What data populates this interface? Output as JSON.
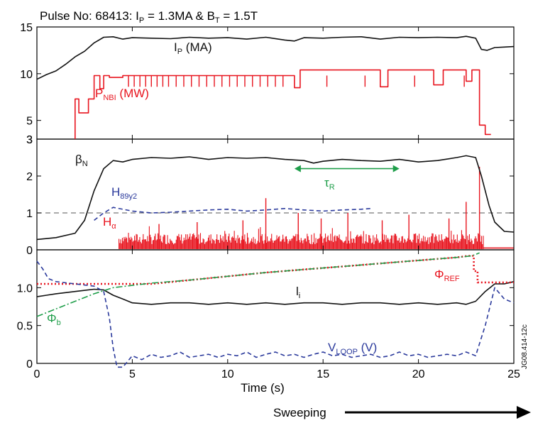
{
  "chart_data": {
    "type": "line",
    "title": "Pulse No: 68413: I",
    "title_parts": {
      "p1": "Pulse No: 68413: I",
      "p_sub": "P",
      "p2": " = 1.3MA & B",
      "t_sub": "T",
      "p3": " = 1.5T"
    },
    "xlabel": "Time (s)",
    "xlim": [
      0,
      25
    ],
    "xticks": [
      "0",
      "5",
      "10",
      "15",
      "20",
      "25"
    ],
    "side_label": "JG08.414-12c",
    "footer": "Sweeping",
    "colors": {
      "black": "#111111",
      "red": "#e8141e",
      "blue": "#2b3a9c",
      "green": "#1f9e4a",
      "gray": "#777777"
    },
    "panels": [
      {
        "ylim": [
          3,
          15
        ],
        "yticks": [
          "3",
          "5",
          "10",
          "15"
        ],
        "labels": {
          "ip": {
            "main": "I",
            "sub": "P",
            "tail": " (MA)"
          },
          "pnbi": {
            "main": "P",
            "sub": "NBI",
            "tail": " (MW)"
          }
        },
        "series": [
          {
            "key": "ip",
            "color": "#111111",
            "x": [
              0,
              0.5,
              1,
              1.5,
              2,
              2.5,
              3,
              3.5,
              4,
              4.5,
              5,
              6,
              7,
              8,
              9,
              10,
              11,
              12,
              13,
              13.5,
              14,
              15,
              16,
              17,
              18,
              19,
              20,
              21,
              22,
              22.5,
              23,
              23.3,
              23.6,
              24,
              24.5,
              25
            ],
            "y": [
              9.4,
              9.9,
              10.3,
              11.0,
              11.8,
              12.4,
              13.3,
              13.9,
              13.95,
              13.7,
              13.85,
              13.8,
              13.75,
              13.9,
              13.8,
              13.85,
              13.7,
              13.9,
              13.6,
              13.5,
              13.85,
              13.8,
              13.9,
              13.95,
              13.7,
              13.9,
              13.85,
              13.9,
              13.85,
              14.0,
              13.8,
              12.6,
              12.5,
              12.8,
              12.85,
              12.9
            ]
          },
          {
            "key": "pnbi",
            "color": "#e8141e",
            "x": [
              2,
              2,
              2.2,
              2.2,
              2.7,
              2.7,
              3,
              3,
              3.3,
              3.3,
              3.5,
              3.5,
              3.8,
              3.8,
              4.5,
              4.5,
              13.5,
              13.5,
              13.8,
              13.8,
              18,
              18,
              18.4,
              18.4,
              20.8,
              20.8,
              21.3,
              21.3,
              22.5,
              22.5,
              22.8,
              22.8,
              23.2,
              23.2,
              23.5,
              23.5,
              23.8
            ],
            "y": [
              3,
              7.3,
              7.3,
              5.8,
              5.8,
              7.3,
              7.3,
              9.8,
              9.8,
              8.4,
              8.4,
              9.8,
              9.8,
              9.6,
              9.6,
              9.8,
              9.8,
              8.5,
              8.5,
              10.4,
              10.4,
              8.6,
              8.6,
              10.4,
              10.4,
              8.8,
              8.8,
              10.4,
              10.4,
              9.2,
              9.2,
              10.4,
              10.4,
              4.5,
              4.5,
              3.5,
              3.5
            ]
          }
        ],
        "spikes_x": [
          4.8,
          5.1,
          5.4,
          5.7,
          6.0,
          6.3,
          6.6,
          6.9,
          7.3,
          7.7,
          8.1,
          8.5,
          8.9,
          9.3,
          9.7,
          10.1,
          10.5,
          10.9,
          11.3,
          11.7,
          12.1,
          12.5,
          12.9,
          15.2,
          17.2,
          19.8,
          22.4
        ]
      },
      {
        "ylim": [
          0,
          3
        ],
        "yticks": [
          "0",
          "1",
          "2",
          "3"
        ],
        "reference_line": 1,
        "labels": {
          "betaN": {
            "main": "β",
            "sub": "N"
          },
          "h89": {
            "main": "H",
            "sub": "89y2"
          },
          "halpha": {
            "main": "H",
            "sub": "α"
          },
          "tauR": {
            "main": "τ",
            "sub": "R"
          }
        },
        "tauR_span": [
          13.5,
          19
        ],
        "tauR_y": 2.2,
        "series": [
          {
            "key": "betaN",
            "color": "#111111",
            "x": [
              0,
              1,
              2,
              2.5,
              3,
              3.5,
              4,
              4.5,
              5,
              6,
              7,
              8,
              9,
              10,
              11,
              12,
              13,
              14,
              14.5,
              15,
              16,
              17,
              18,
              19,
              20,
              21,
              22,
              22.5,
              23,
              23.3,
              23.7,
              24,
              24.5,
              25
            ],
            "y": [
              0.28,
              0.33,
              0.45,
              0.8,
              1.6,
              2.2,
              2.42,
              2.38,
              2.45,
              2.5,
              2.48,
              2.52,
              2.45,
              2.5,
              2.48,
              2.5,
              2.45,
              2.42,
              2.35,
              2.4,
              2.45,
              2.42,
              2.4,
              2.45,
              2.38,
              2.42,
              2.5,
              2.55,
              2.5,
              2.0,
              1.2,
              0.75,
              0.5,
              0.48
            ]
          },
          {
            "key": "h89",
            "color": "#2b3a9c",
            "x": [
              3,
              3.5,
              4,
              4.5,
              5,
              6,
              7,
              8,
              9,
              10,
              11,
              12,
              13,
              14,
              15,
              16,
              17,
              17.5
            ],
            "y": [
              0.8,
              1.0,
              1.15,
              1.1,
              1.05,
              1.0,
              1.02,
              1.05,
              1.08,
              1.1,
              1.05,
              1.08,
              1.12,
              1.08,
              1.05,
              1.08,
              1.1,
              1.12
            ]
          }
        ],
        "halpha_x": [
          4.3,
          23.4
        ],
        "halpha_base": 0.15,
        "halpha_top": 0.45,
        "halpha_spikes": [
          [
            12,
            1.4
          ],
          [
            13.7,
            1.0
          ],
          [
            16.3,
            1.0
          ],
          [
            19.5,
            0.95
          ],
          [
            22.5,
            1.3
          ],
          [
            21.6,
            0.85
          ],
          [
            23.2,
            2.25
          ],
          [
            10.8,
            0.8
          ],
          [
            8.4,
            0.75
          ],
          [
            14.9,
            0.85
          ],
          [
            6.4,
            0.7
          ],
          [
            18.1,
            0.8
          ]
        ]
      },
      {
        "ylim": [
          0,
          1.5
        ],
        "yticks": [
          "0",
          "0.5",
          "1.0"
        ],
        "labels": {
          "li": {
            "main": "l",
            "sub": "i"
          },
          "phib": {
            "main": "Φ",
            "sub": "b"
          },
          "phiref": {
            "main": "Φ",
            "sub": "REF"
          },
          "vloop": {
            "main": "V",
            "sub": "LOOP",
            "tail": " (V)"
          }
        },
        "series": [
          {
            "key": "li",
            "color": "#111111",
            "x": [
              0,
              0.5,
              1,
              2,
              3,
              3.5,
              4,
              4.5,
              5,
              6,
              7,
              8,
              9,
              10,
              11,
              12,
              13,
              14,
              15,
              16,
              17,
              18,
              19,
              20,
              21,
              22,
              22.5,
              23,
              23.5,
              24,
              24.5,
              25
            ],
            "y": [
              0.88,
              0.9,
              0.92,
              0.95,
              0.98,
              0.97,
              0.9,
              0.85,
              0.8,
              0.78,
              0.8,
              0.8,
              0.78,
              0.8,
              0.78,
              0.8,
              0.78,
              0.8,
              0.8,
              0.78,
              0.8,
              0.8,
              0.78,
              0.8,
              0.78,
              0.8,
              0.78,
              0.82,
              0.95,
              1.05,
              1.05,
              1.08
            ]
          },
          {
            "key": "phiref",
            "color": "#e8141e",
            "x": [
              0,
              6,
              8,
              10,
              12,
              14,
              16,
              18,
              20,
              21,
              22,
              22.6,
              22.9,
              22.9,
              23.1,
              23.1,
              25
            ],
            "y": [
              1.05,
              1.05,
              1.1,
              1.15,
              1.2,
              1.24,
              1.28,
              1.32,
              1.36,
              1.38,
              1.4,
              1.42,
              1.42,
              1.22,
              1.22,
              1.07,
              1.07
            ]
          },
          {
            "key": "phib",
            "color": "#1f9e4a",
            "x": [
              0,
              1,
              2,
              3,
              4,
              5,
              6,
              8,
              10,
              12,
              14,
              16,
              18,
              20,
              22,
              22.8,
              23.2
            ],
            "y": [
              0.62,
              0.72,
              0.82,
              0.92,
              1.0,
              1.03,
              1.06,
              1.1,
              1.15,
              1.2,
              1.24,
              1.28,
              1.32,
              1.36,
              1.4,
              1.42,
              1.46
            ]
          },
          {
            "key": "vloop",
            "color": "#2b3a9c",
            "x": [
              0,
              0.3,
              0.6,
              1,
              2,
              3,
              3.5,
              3.8,
              4.0,
              4.2,
              4.5,
              5,
              5.5,
              6,
              6.5,
              7,
              7.5,
              8,
              8.5,
              9,
              9.5,
              10,
              10.5,
              11,
              11.5,
              12,
              12.5,
              13,
              13.5,
              14,
              14.5,
              15,
              15.5,
              16,
              16.5,
              17,
              17.5,
              18,
              18.5,
              19,
              19.5,
              20,
              20.5,
              21,
              21.5,
              22,
              22.5,
              23,
              23.5,
              24,
              24.5,
              25
            ],
            "y": [
              1.35,
              1.25,
              1.12,
              1.08,
              1.05,
              1.02,
              0.95,
              0.6,
              0.2,
              -0.05,
              -0.05,
              0.1,
              0.05,
              0.12,
              0.08,
              0.1,
              0.15,
              0.08,
              0.1,
              0.12,
              0.08,
              0.12,
              0.1,
              0.15,
              0.08,
              0.12,
              0.15,
              0.1,
              0.12,
              0.08,
              0.12,
              0.15,
              0.1,
              0.12,
              0.08,
              0.1,
              0.12,
              0.08,
              0.1,
              0.15,
              0.1,
              0.12,
              0.08,
              0.1,
              0.12,
              0.1,
              0.15,
              0.1,
              0.5,
              1.0,
              0.85,
              0.8
            ]
          }
        ]
      }
    ]
  }
}
